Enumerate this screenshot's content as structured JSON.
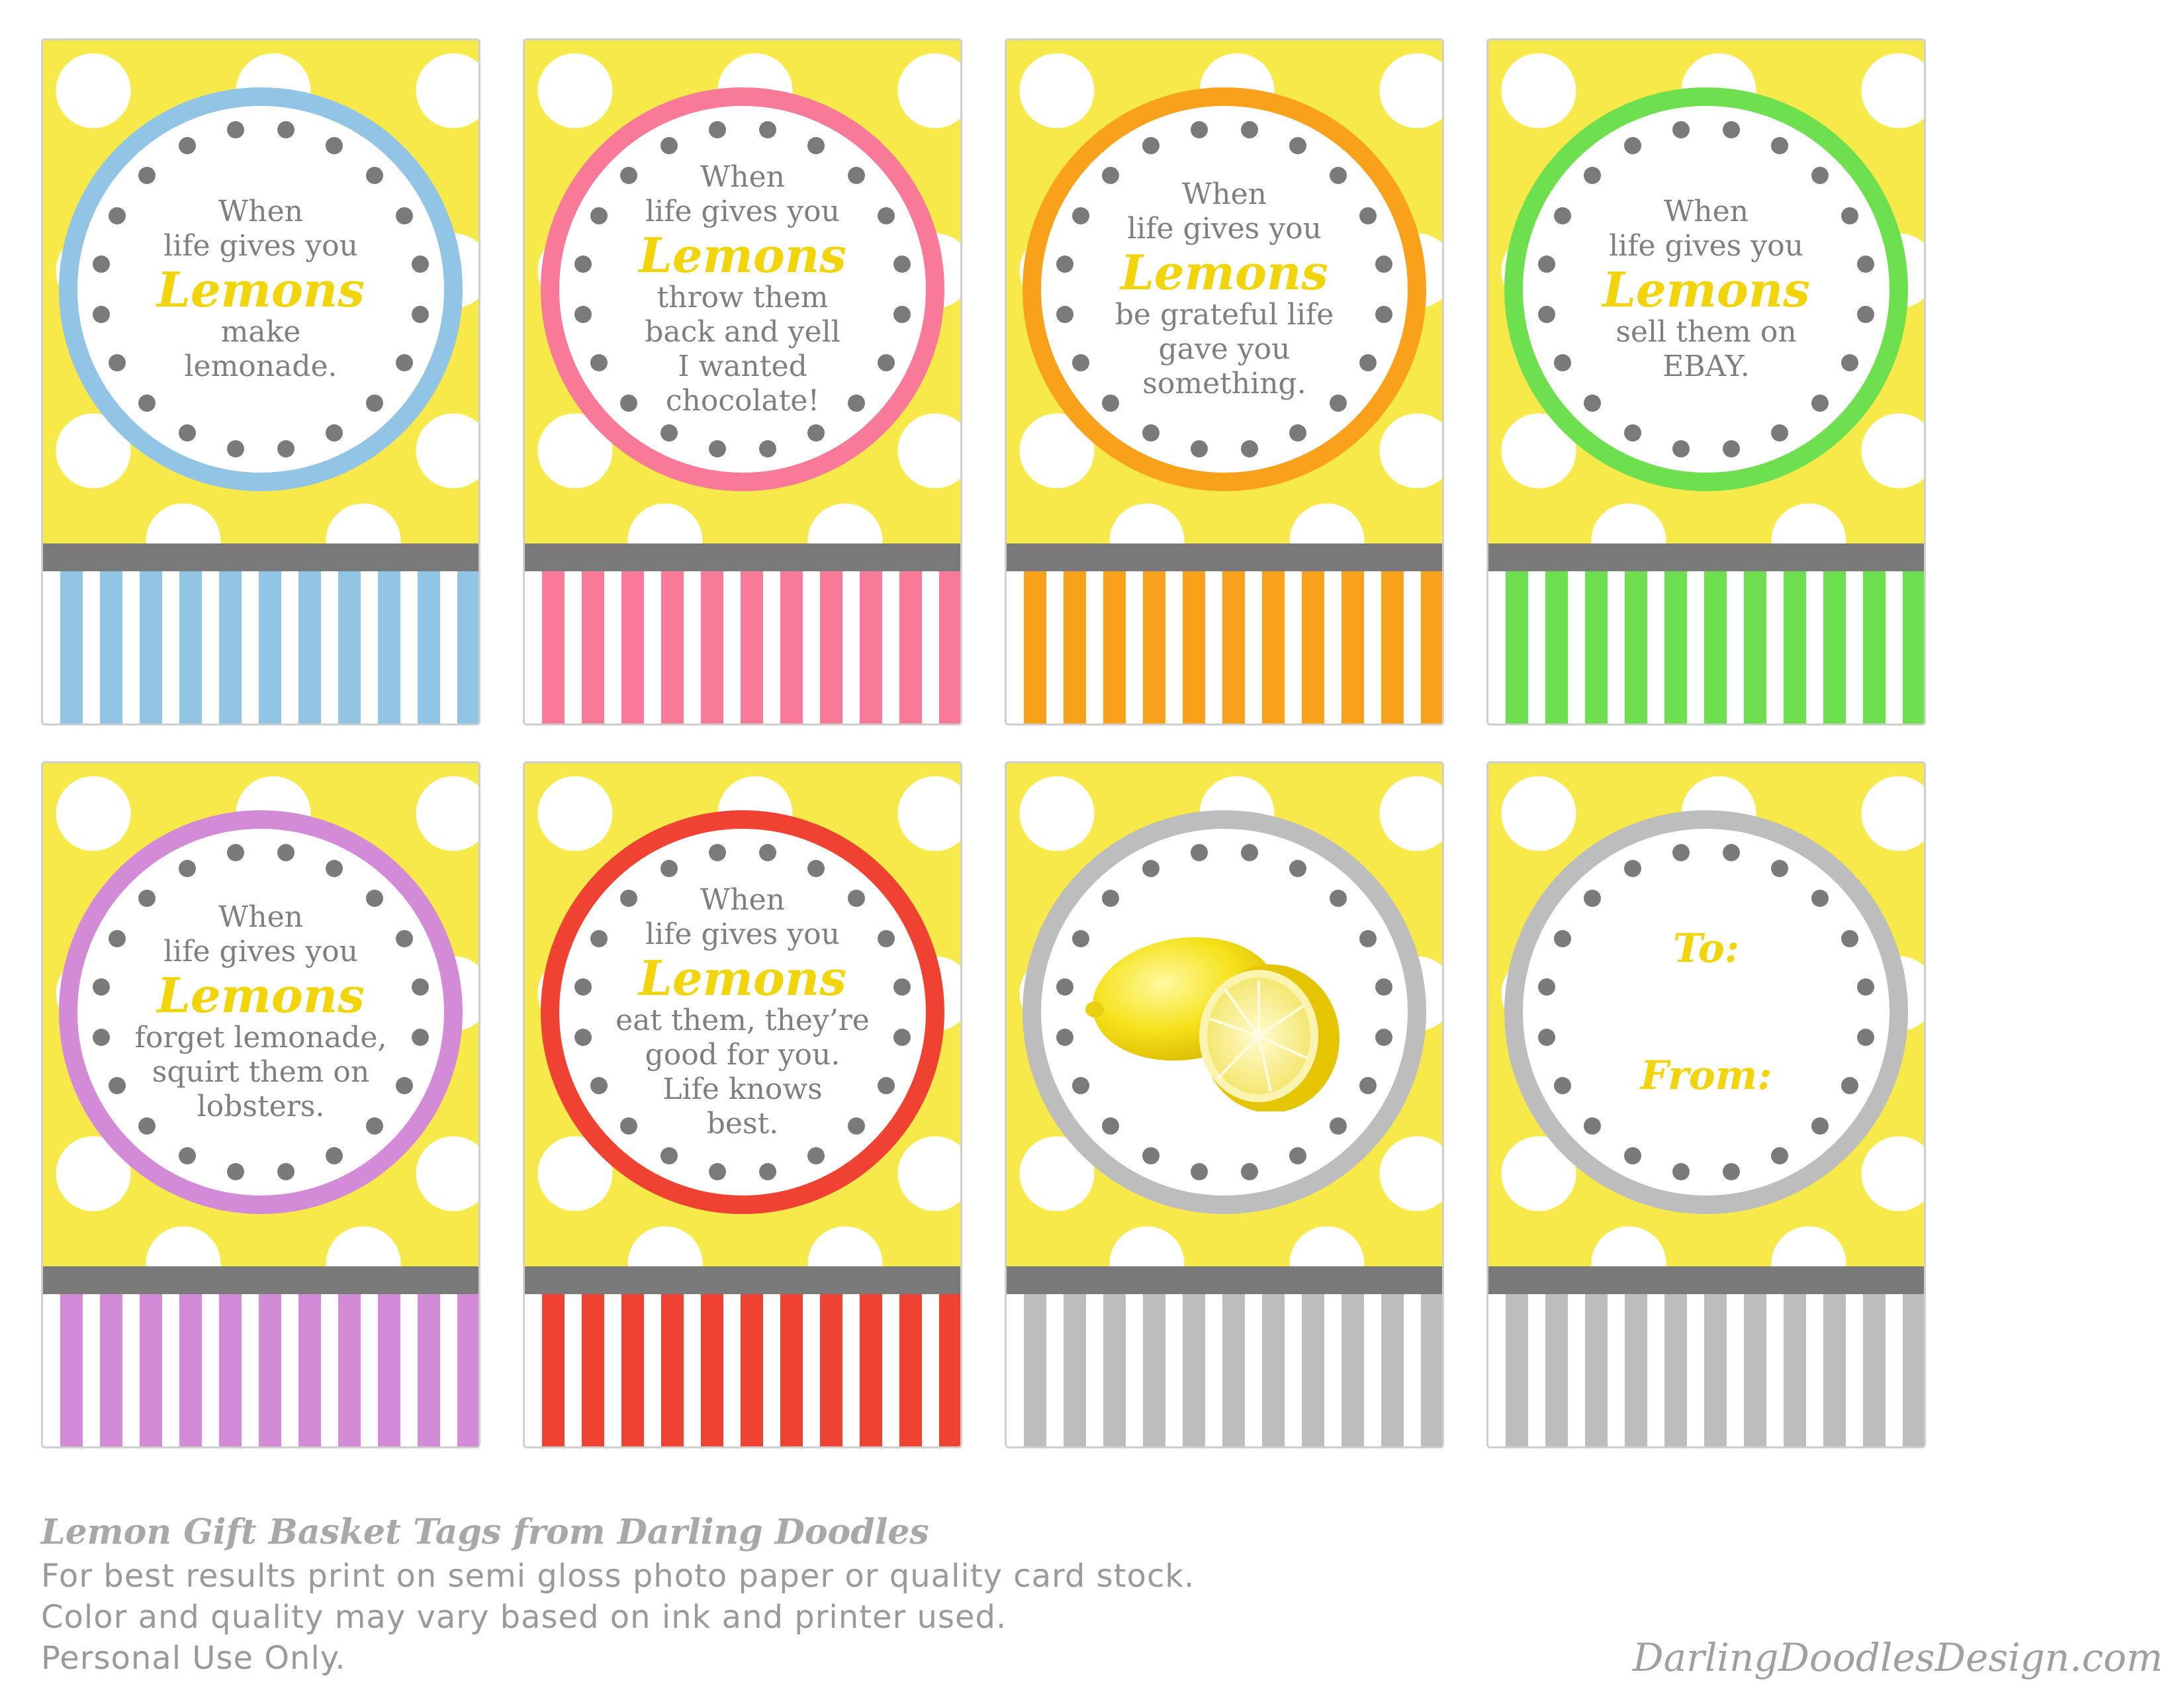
{
  "tags": [
    {
      "id": "blue",
      "color": "#92c4e6",
      "type": "quote",
      "lines_top": [
        "When",
        "life gives you"
      ],
      "highlight": "Lemons",
      "lines_bottom": [
        "make",
        "lemonade."
      ]
    },
    {
      "id": "pink",
      "color": "#f87a98",
      "type": "quote",
      "lines_top": [
        "When",
        "life gives you"
      ],
      "highlight": "Lemons",
      "lines_bottom": [
        "throw them",
        "back and yell",
        "I wanted",
        "chocolate!"
      ]
    },
    {
      "id": "orange",
      "color": "#f9a11b",
      "type": "quote",
      "lines_top": [
        "When",
        "life gives you"
      ],
      "highlight": "Lemons",
      "lines_bottom": [
        "be grateful life",
        "gave you",
        "something."
      ]
    },
    {
      "id": "green",
      "color": "#6ee050",
      "type": "quote",
      "lines_top": [
        "When",
        "life gives you"
      ],
      "highlight": "Lemons",
      "lines_bottom": [
        "sell them on",
        "EBAY."
      ]
    },
    {
      "id": "purple",
      "color": "#d38bd8",
      "type": "quote",
      "lines_top": [
        "When",
        "life gives you"
      ],
      "highlight": "Lemons",
      "lines_bottom": [
        "forget lemonade,",
        "squirt them on",
        "lobsters."
      ]
    },
    {
      "id": "red",
      "color": "#ef4232",
      "type": "quote",
      "lines_top": [
        "When",
        "life gives you"
      ],
      "highlight": "Lemons",
      "lines_bottom": [
        "eat them, they’re",
        "good for you.",
        "Life knows",
        "best."
      ]
    },
    {
      "id": "gray-lemon",
      "color": "#bdbdbd",
      "type": "image",
      "image_name": "lemon-illustration"
    },
    {
      "id": "gray-tofrom",
      "color": "#bdbdbd",
      "type": "to-from",
      "to_label": "To:",
      "from_label": "From:"
    }
  ],
  "footer": {
    "title": "Lemon Gift Basket Tags from Darling Doodles",
    "lines": [
      "For best results print on semi gloss photo paper or quality card stock.",
      "Color and quality may vary based on ink and printer used.",
      "Personal Use Only."
    ],
    "website": "DarlingDoodlesDesign.com"
  }
}
